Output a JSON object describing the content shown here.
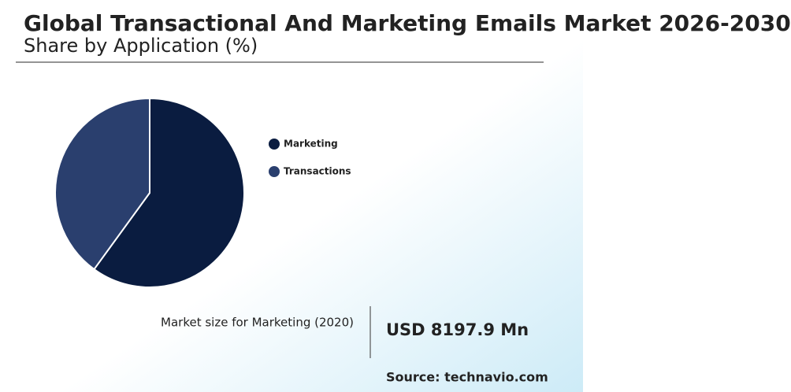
{
  "chart_data": {
    "type": "pie",
    "title": "Global Transactional And Marketing Emails Market 2026-2030",
    "subtitle": "Share by Application (%)",
    "categories": [
      "Marketing",
      "Transactions"
    ],
    "values": [
      60,
      40
    ],
    "colors": [
      "#0a1c40",
      "#2a3f6e"
    ],
    "annotation": {
      "label": "Market size for Marketing (2020)",
      "value": "USD 8197.9 Mn"
    },
    "source": "Source: technavio.com"
  }
}
